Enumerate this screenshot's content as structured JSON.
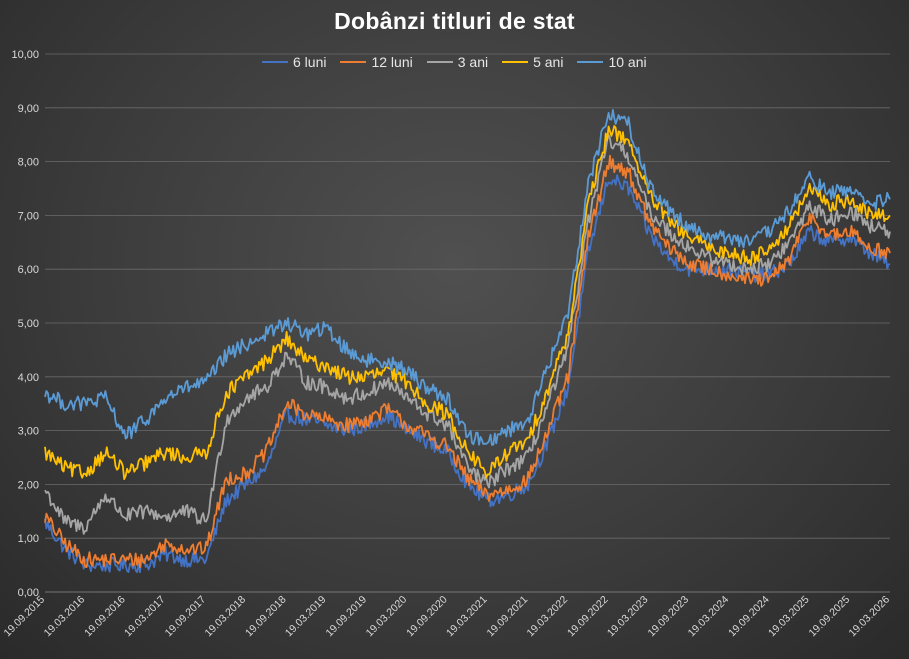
{
  "chart_data": {
    "type": "line",
    "title": "Dobânzi titluri de stat",
    "xlabel": "",
    "ylabel": "",
    "ylim": [
      0,
      10
    ],
    "grid": "horizontal",
    "legend_position": "top",
    "y_ticks": [
      "0,00",
      "1,00",
      "2,00",
      "3,00",
      "4,00",
      "5,00",
      "6,00",
      "7,00",
      "8,00",
      "9,00",
      "10,00"
    ],
    "x_ticks": [
      "19.09.2015",
      "19.03.2016",
      "19.09.2016",
      "19.03.2017",
      "19.09.2017",
      "19.03.2018",
      "19.09.2018",
      "19.03.2019",
      "19.09.2019",
      "19.03.2020",
      "19.09.2020",
      "19.03.2021",
      "19.09.2021",
      "19.03.2022",
      "19.09.2022",
      "19.03.2023",
      "19.09.2023",
      "19.03.2024",
      "19.09.2024",
      "19.03.2025",
      "19.09.2025",
      "19.03.2026"
    ],
    "x": [
      "2015-09-19",
      "2015-12-19",
      "2016-03-19",
      "2016-06-19",
      "2016-09-19",
      "2016-12-19",
      "2017-03-19",
      "2017-06-19",
      "2017-09-19",
      "2017-12-19",
      "2018-03-19",
      "2018-06-19",
      "2018-09-19",
      "2018-12-19",
      "2019-03-19",
      "2019-06-19",
      "2019-09-19",
      "2019-12-19",
      "2020-03-19",
      "2020-06-19",
      "2020-09-19",
      "2020-12-19",
      "2021-03-19",
      "2021-06-19",
      "2021-09-19",
      "2021-12-19",
      "2022-03-19",
      "2022-06-19",
      "2022-09-19",
      "2022-12-19",
      "2023-03-19",
      "2023-06-19",
      "2023-09-19",
      "2023-12-19",
      "2024-03-19",
      "2024-06-19",
      "2024-09-19",
      "2024-12-19",
      "2025-03-19",
      "2025-06-19",
      "2025-09-19",
      "2025-12-19",
      "2026-03-19"
    ],
    "series": [
      {
        "name": "6 luni",
        "color": "#4472c4",
        "values": [
          1.3,
          0.8,
          0.5,
          0.5,
          0.5,
          0.5,
          0.7,
          0.6,
          0.6,
          1.7,
          2.0,
          2.3,
          3.3,
          3.2,
          3.1,
          3.0,
          3.1,
          3.3,
          3.0,
          2.8,
          2.6,
          2.0,
          1.7,
          1.8,
          2.0,
          2.8,
          3.8,
          6.3,
          7.7,
          7.5,
          6.7,
          6.2,
          6.0,
          6.0,
          6.0,
          5.9,
          5.9,
          6.1,
          6.7,
          6.5,
          6.6,
          6.3,
          6.1
        ]
      },
      {
        "name": "12 luni",
        "color": "#ed7d31",
        "values": [
          1.4,
          0.9,
          0.6,
          0.6,
          0.6,
          0.6,
          0.9,
          0.8,
          0.8,
          2.1,
          2.2,
          2.6,
          3.5,
          3.3,
          3.2,
          3.1,
          3.2,
          3.4,
          3.1,
          2.9,
          2.7,
          2.1,
          1.8,
          1.9,
          2.1,
          3.0,
          4.0,
          6.6,
          8.0,
          7.8,
          6.9,
          6.4,
          6.1,
          6.0,
          5.9,
          5.8,
          5.8,
          6.2,
          7.0,
          6.6,
          6.7,
          6.4,
          6.3
        ]
      },
      {
        "name": "3 ani",
        "color": "#a5a5a5",
        "values": [
          1.9,
          1.3,
          1.2,
          1.8,
          1.4,
          1.5,
          1.4,
          1.5,
          1.3,
          3.2,
          3.6,
          3.8,
          4.4,
          3.9,
          3.8,
          3.6,
          3.7,
          3.9,
          3.6,
          3.3,
          3.1,
          2.3,
          2.0,
          2.3,
          2.5,
          3.5,
          4.5,
          6.9,
          8.4,
          8.1,
          7.1,
          6.7,
          6.4,
          6.2,
          6.1,
          6.0,
          6.1,
          6.5,
          7.2,
          6.9,
          7.1,
          6.8,
          6.7
        ]
      },
      {
        "name": "5 ani",
        "color": "#ffc000",
        "values": [
          2.6,
          2.3,
          2.2,
          2.6,
          2.2,
          2.4,
          2.6,
          2.5,
          2.6,
          3.7,
          4.0,
          4.3,
          4.7,
          4.3,
          4.2,
          4.0,
          4.0,
          4.1,
          3.9,
          3.5,
          3.3,
          2.6,
          2.2,
          2.6,
          2.8,
          3.8,
          4.8,
          7.2,
          8.6,
          8.4,
          7.4,
          6.9,
          6.6,
          6.4,
          6.3,
          6.2,
          6.4,
          6.8,
          7.5,
          7.2,
          7.3,
          7.0,
          7.0
        ]
      },
      {
        "name": "10 ani",
        "color": "#5b9bd5",
        "values": [
          3.7,
          3.5,
          3.5,
          3.6,
          2.9,
          3.2,
          3.6,
          3.8,
          3.9,
          4.4,
          4.6,
          4.8,
          5.0,
          4.8,
          4.9,
          4.5,
          4.3,
          4.3,
          4.1,
          3.8,
          3.6,
          2.9,
          2.8,
          3.0,
          3.2,
          4.2,
          5.2,
          7.6,
          8.9,
          8.7,
          7.6,
          7.1,
          6.8,
          6.6,
          6.6,
          6.5,
          6.7,
          7.1,
          7.7,
          7.4,
          7.5,
          7.2,
          7.3
        ]
      }
    ]
  }
}
